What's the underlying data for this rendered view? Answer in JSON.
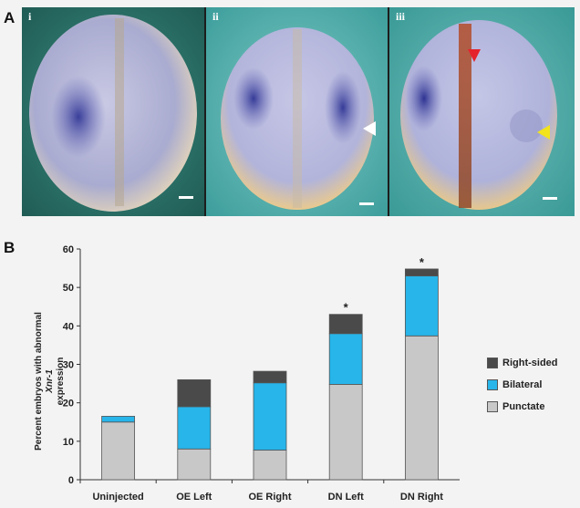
{
  "panel_a": {
    "label": "A",
    "photos": [
      {
        "label": "i"
      },
      {
        "label": "ii"
      },
      {
        "label": "iii"
      }
    ]
  },
  "panel_b": {
    "label": "B"
  },
  "colors": {
    "punctate": "#c8c8c8",
    "bilateral": "#27b5ea",
    "right_sided": "#4a4a4a",
    "arrow_white": "#ffffff",
    "arrow_red": "#e5232b",
    "arrow_yellow": "#f2e31c"
  },
  "chart_data": {
    "type": "bar",
    "stacked": true,
    "categories": [
      "Uninjected",
      "OE Left",
      "OE Right",
      "DN Left",
      "DN Right"
    ],
    "series": [
      {
        "name": "Punctate",
        "values": [
          15,
          8,
          7.7,
          24.8,
          37.4
        ]
      },
      {
        "name": "Bilateral",
        "values": [
          1.5,
          11,
          17.5,
          13.2,
          15.6
        ]
      },
      {
        "name": "Right-sided",
        "values": [
          0,
          7,
          3,
          5,
          1.8
        ]
      }
    ],
    "legend": [
      "Right-sided",
      "Bilateral",
      "Punctate"
    ],
    "annotations": [
      {
        "category": "DN Left",
        "text": "*"
      },
      {
        "category": "DN Right",
        "text": "*"
      }
    ],
    "ylabel_prefix": "Percent embryos with abnormal",
    "ylabel_gene": "Xnr-1",
    "ylabel_suffix": "expression",
    "ylim": [
      0,
      60
    ],
    "yticks": [
      0,
      10,
      20,
      30,
      40,
      50,
      60
    ],
    "grid": false,
    "legend_position": "right"
  }
}
